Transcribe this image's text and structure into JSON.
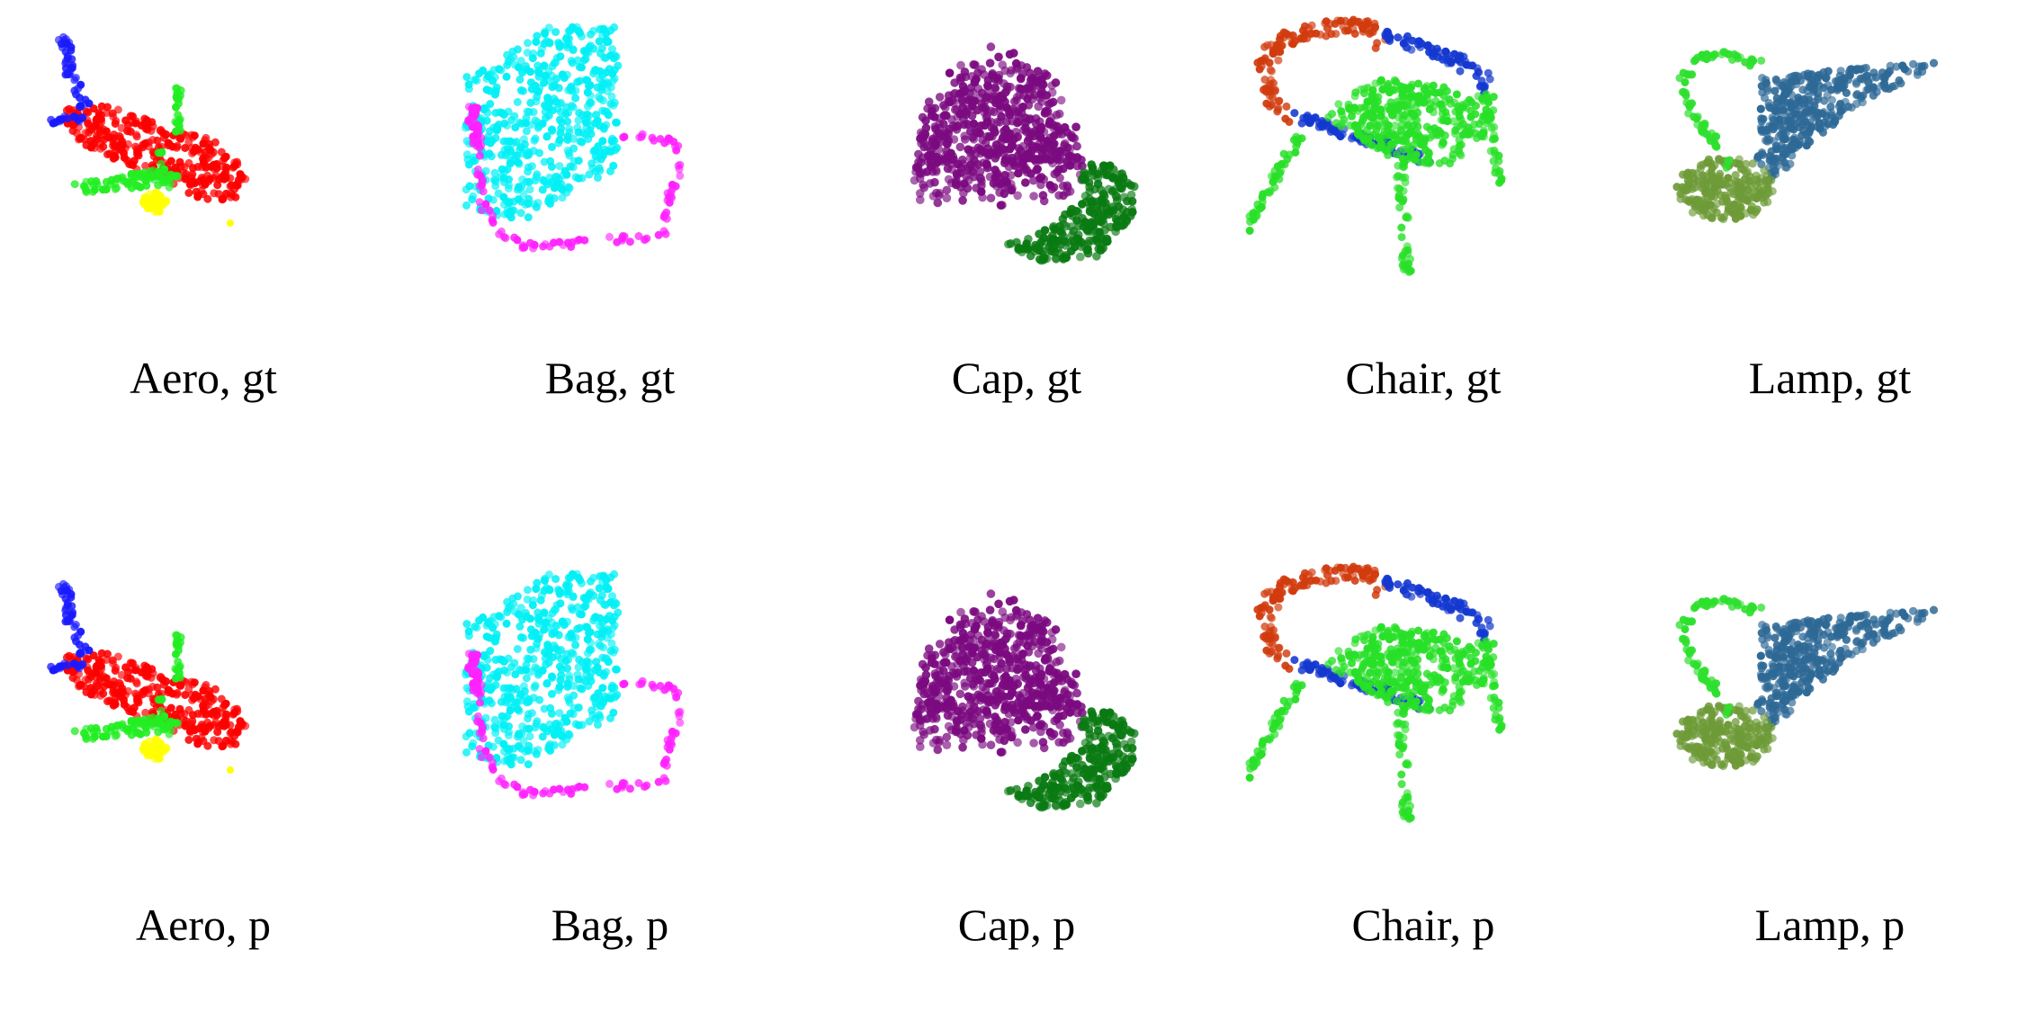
{
  "figure": {
    "rows": [
      {
        "row": "gt",
        "panels": [
          {
            "label": "Aero, gt",
            "shape": "aero",
            "colors": [
              "#ff0000",
              "#1a1aff",
              "#22ee22",
              "#ffff00"
            ]
          },
          {
            "label": "Bag, gt",
            "shape": "bag",
            "colors": [
              "#00f0f5",
              "#ff22ff"
            ]
          },
          {
            "label": "Cap, gt",
            "shape": "cap",
            "colors": [
              "#7b0a80",
              "#0a7a12"
            ]
          },
          {
            "label": "Chair, gt",
            "shape": "chair",
            "colors": [
              "#d13b0e",
              "#1438d0",
              "#28e028"
            ]
          },
          {
            "label": "Lamp, gt",
            "shape": "lamp",
            "colors": [
              "#2e6996",
              "#6e9b38",
              "#2ee02e"
            ]
          }
        ]
      },
      {
        "row": "p",
        "panels": [
          {
            "label": "Aero, p",
            "shape": "aero",
            "colors": [
              "#ff0000",
              "#1a1aff",
              "#22ee22",
              "#ffff00"
            ]
          },
          {
            "label": "Bag, p",
            "shape": "bag",
            "colors": [
              "#00f0f5",
              "#ff22ff"
            ]
          },
          {
            "label": "Cap, p",
            "shape": "cap",
            "colors": [
              "#7b0a80",
              "#0a7a12"
            ]
          },
          {
            "label": "Chair, p",
            "shape": "chair",
            "colors": [
              "#d13b0e",
              "#1438d0",
              "#28e028"
            ]
          },
          {
            "label": "Lamp, p",
            "shape": "lamp",
            "colors": [
              "#2e6996",
              "#6e9b38",
              "#2ee02e"
            ]
          }
        ]
      }
    ]
  }
}
